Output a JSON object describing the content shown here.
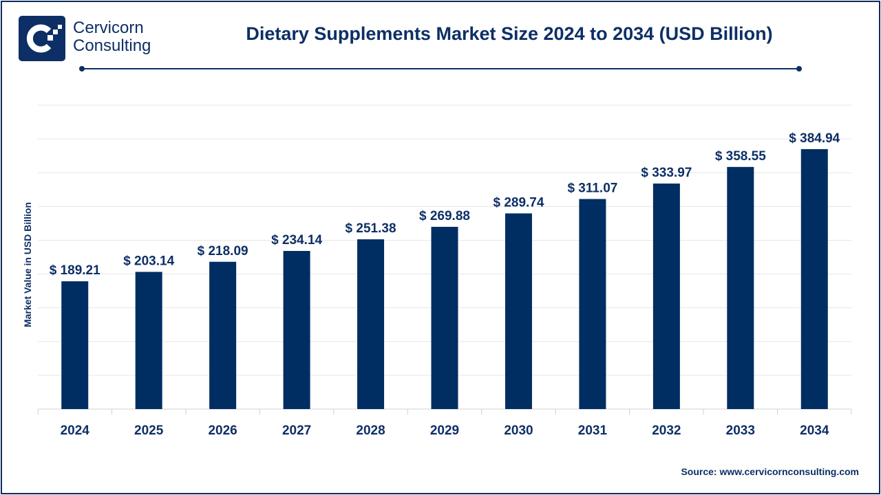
{
  "brand": {
    "line1": "Cervicorn",
    "line2": "Consulting"
  },
  "source": "Source: www.cervicornconsulting.com",
  "colors": {
    "bar": "#002d62",
    "text": "#0d2f66",
    "grid": "#e6e6e6"
  },
  "chart_data": {
    "type": "bar",
    "title": "Dietary Supplements Market Size 2024 to 2034 (USD Billion)",
    "xlabel": "",
    "ylabel": "Market Value in USD Billion",
    "categories": [
      "2024",
      "2025",
      "2026",
      "2027",
      "2028",
      "2029",
      "2030",
      "2031",
      "2032",
      "2033",
      "2034"
    ],
    "values": [
      189.21,
      203.14,
      218.09,
      234.14,
      251.38,
      269.88,
      289.74,
      311.07,
      333.97,
      358.55,
      384.94
    ],
    "data_labels": [
      "$ 189.21",
      "$ 203.14",
      "$ 218.09",
      "$ 234.14",
      "$ 251.38",
      "$ 269.88",
      "$ 289.74",
      "$ 311.07",
      "$ 333.97",
      "$ 358.55",
      "$ 384.94"
    ],
    "ylim": [
      0,
      450
    ],
    "grid": true
  }
}
